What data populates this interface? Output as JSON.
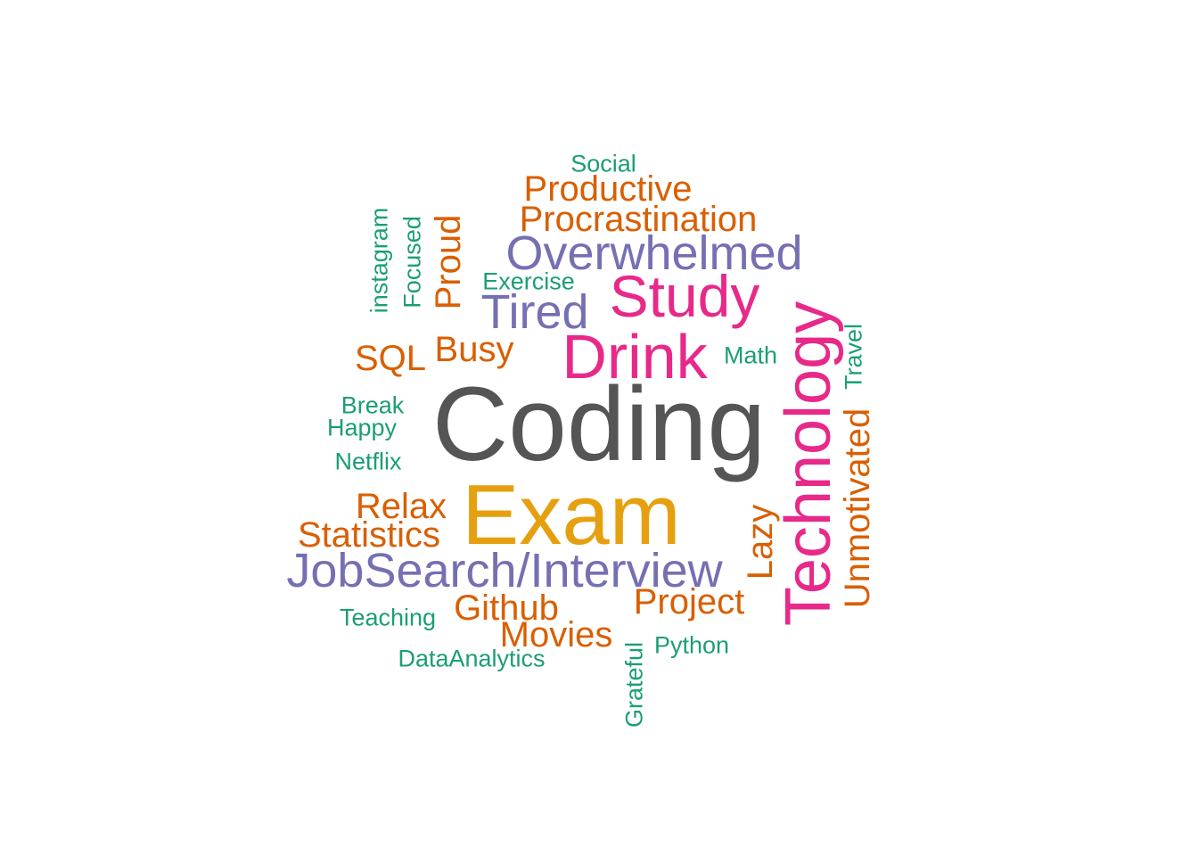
{
  "chart_data": {
    "type": "wordcloud",
    "words": [
      {
        "text": "Coding",
        "weight": 10,
        "color": "#555555"
      },
      {
        "text": "Exam",
        "weight": 9,
        "color": "#E6A00F"
      },
      {
        "text": "Drink",
        "weight": 7,
        "color": "#E7298A"
      },
      {
        "text": "Technology",
        "weight": 7,
        "color": "#E7298A"
      },
      {
        "text": "Study",
        "weight": 7,
        "color": "#E7298A"
      },
      {
        "text": "JobSearch/Interview",
        "weight": 6,
        "color": "#7570B3"
      },
      {
        "text": "Overwhelmed",
        "weight": 6,
        "color": "#7570B3"
      },
      {
        "text": "Tired",
        "weight": 6,
        "color": "#7570B3"
      },
      {
        "text": "Unmotivated",
        "weight": 4,
        "color": "#D95F02"
      },
      {
        "text": "Procrastination",
        "weight": 4,
        "color": "#D95F02"
      },
      {
        "text": "Productive",
        "weight": 4,
        "color": "#D95F02"
      },
      {
        "text": "Statistics",
        "weight": 4,
        "color": "#D95F02"
      },
      {
        "text": "Relax",
        "weight": 4,
        "color": "#D95F02"
      },
      {
        "text": "Project",
        "weight": 4,
        "color": "#D95F02"
      },
      {
        "text": "Movies",
        "weight": 4,
        "color": "#D95F02"
      },
      {
        "text": "Github",
        "weight": 4,
        "color": "#D95F02"
      },
      {
        "text": "Proud",
        "weight": 4,
        "color": "#D95F02"
      },
      {
        "text": "Busy",
        "weight": 4,
        "color": "#D95F02"
      },
      {
        "text": "SQL",
        "weight": 4,
        "color": "#D95F02"
      },
      {
        "text": "Lazy",
        "weight": 4,
        "color": "#D95F02"
      },
      {
        "text": "Social",
        "weight": 2,
        "color": "#1B9E77"
      },
      {
        "text": "Exercise",
        "weight": 2,
        "color": "#1B9E77"
      },
      {
        "text": "instagram",
        "weight": 2,
        "color": "#1B9E77"
      },
      {
        "text": "Focused",
        "weight": 2,
        "color": "#1B9E77"
      },
      {
        "text": "Math",
        "weight": 2,
        "color": "#1B9E77"
      },
      {
        "text": "Travel",
        "weight": 2,
        "color": "#1B9E77"
      },
      {
        "text": "Break",
        "weight": 2,
        "color": "#1B9E77"
      },
      {
        "text": "Happy",
        "weight": 2,
        "color": "#1B9E77"
      },
      {
        "text": "Netflix",
        "weight": 2,
        "color": "#1B9E77"
      },
      {
        "text": "Teaching",
        "weight": 2,
        "color": "#1B9E77"
      },
      {
        "text": "DataAnalytics",
        "weight": 2,
        "color": "#1B9E77"
      },
      {
        "text": "Python",
        "weight": 2,
        "color": "#1B9E77"
      },
      {
        "text": "Grateful",
        "weight": 2,
        "color": "#1B9E77"
      }
    ]
  }
}
